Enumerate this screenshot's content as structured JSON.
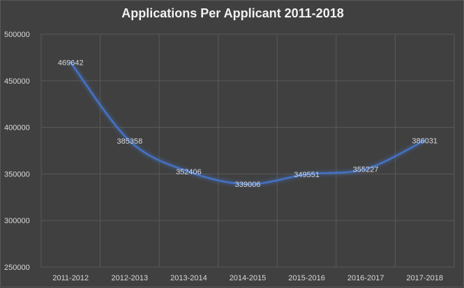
{
  "chart_data": {
    "type": "line",
    "title": "Applications Per Applicant 2011-2018",
    "xlabel": "",
    "ylabel": "",
    "categories": [
      "2011-2012",
      "2012-2013",
      "2013-2014",
      "2014-2015",
      "2015-2016",
      "2016-2017",
      "2017-2018"
    ],
    "series": [
      {
        "values": [
          469642,
          385358,
          352406,
          339006,
          349551,
          355227,
          386031
        ]
      }
    ],
    "ylim": [
      250000,
      500000
    ],
    "yticks": [
      250000,
      300000,
      350000,
      400000,
      450000,
      500000
    ],
    "ytick_labels": [
      "250000",
      "300000",
      "350000",
      "400000",
      "450000",
      "500000"
    ],
    "grid": true,
    "legend": "none",
    "colors": {
      "background": "#404040",
      "line": "#4472c4",
      "grid": "#595959",
      "text": "#d9d9d9",
      "title": "#f2f2f2"
    }
  }
}
